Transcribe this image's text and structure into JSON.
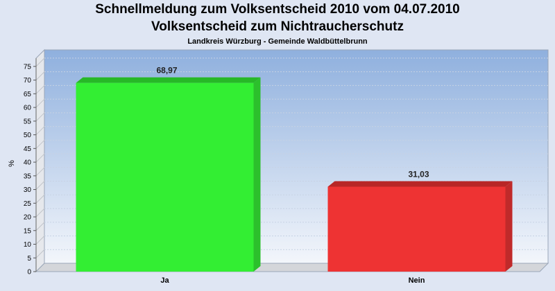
{
  "header": {
    "title": "Schnellmeldung zum Volksentscheid 2010 vom 04.07.2010",
    "subtitle": "Volksentscheid zum Nichtraucherschutz",
    "location": "Landkreis Würzburg - Gemeinde Waldbüttelbrunn"
  },
  "chart_data": {
    "type": "bar",
    "title": "Schnellmeldung zum Volksentscheid 2010 vom 04.07.2010",
    "subtitle": "Volksentscheid zum Nichtraucherschutz",
    "caption": "Landkreis Würzburg - Gemeinde Waldbüttelbrunn",
    "categories": [
      "Ja",
      "Nein"
    ],
    "values": [
      68.97,
      31.03
    ],
    "value_labels": [
      "68,97",
      "31,03"
    ],
    "colors": [
      "#33ee33",
      "#ee3333"
    ],
    "xlabel": "",
    "ylabel": "%",
    "ylim": [
      0,
      78
    ],
    "yticks": [
      0,
      5,
      10,
      15,
      20,
      25,
      30,
      35,
      40,
      45,
      50,
      55,
      60,
      65,
      70,
      75
    ],
    "grid": true,
    "legend": "none"
  }
}
